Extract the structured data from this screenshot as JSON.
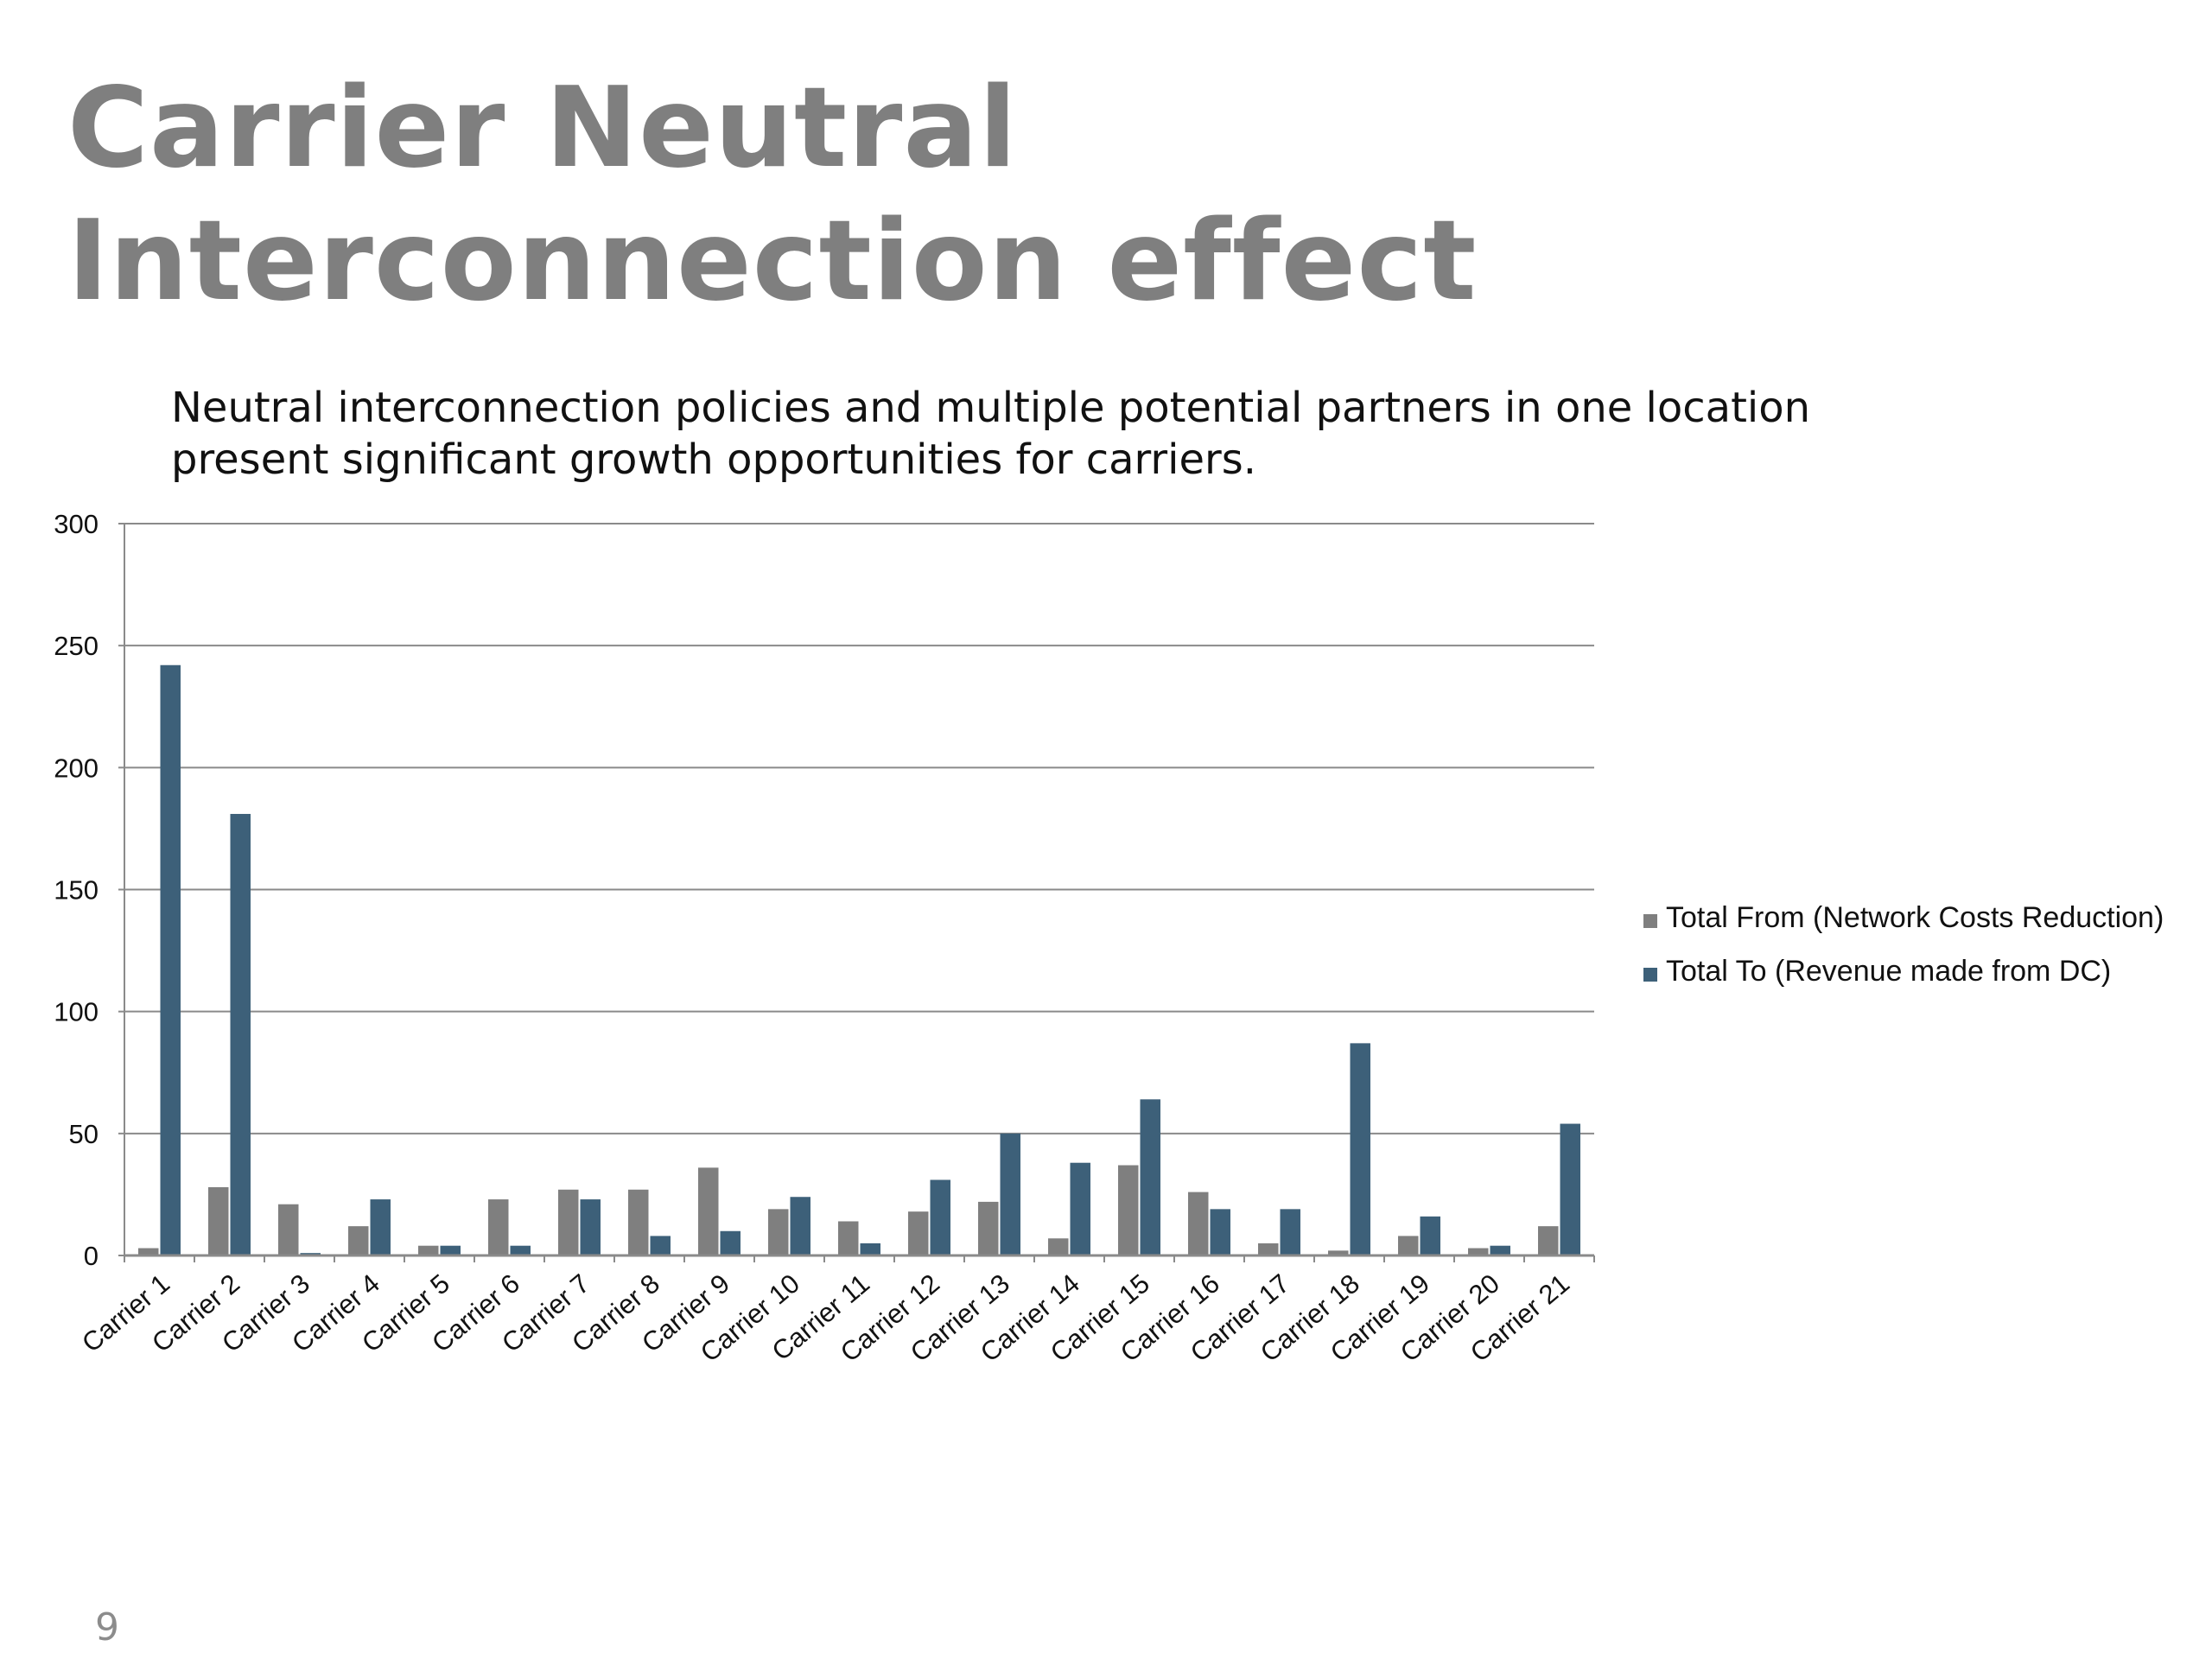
{
  "slide": {
    "title_lines": [
      "Carrier Neutral",
      "Interconnection effect"
    ],
    "subtitle_lines": [
      "Neutral interconnection policies and multiple potential partners in one location",
      "present significant growth opportunities for carriers."
    ],
    "page_number": "9"
  },
  "chart_data": {
    "type": "bar",
    "categories": [
      "Carrier 1",
      "Carrier 2",
      "Carrier 3",
      "Carrier 4",
      "Carrier 5",
      "Carrier 6",
      "Carrier 7",
      "Carrier 8",
      "Carrier 9",
      "Carrier 10",
      "Carrier 11",
      "Carrier 12",
      "Carrier 13",
      "Carrier 14",
      "Carrier 15",
      "Carrier 16",
      "Carrier 17",
      "Carrier 18",
      "Carrier 19",
      "Carrier 20",
      "Carrier 21"
    ],
    "series": [
      {
        "name": "Total From (Network Costs Reduction)",
        "color": "#7f7f7f",
        "values": [
          3,
          28,
          21,
          12,
          4,
          23,
          27,
          27,
          36,
          19,
          14,
          18,
          22,
          7,
          37,
          26,
          5,
          2,
          8,
          3,
          12
        ]
      },
      {
        "name": "Total To (Revenue made from DC)",
        "color": "#3d6079",
        "values": [
          242,
          181,
          1,
          23,
          4,
          4,
          23,
          8,
          10,
          24,
          5,
          31,
          50,
          38,
          64,
          19,
          19,
          87,
          16,
          4,
          54
        ]
      }
    ],
    "ylim": [
      0,
      300
    ],
    "yticks": [
      0,
      50,
      100,
      150,
      200,
      250,
      300
    ],
    "grid": true,
    "legend_position": "right"
  }
}
